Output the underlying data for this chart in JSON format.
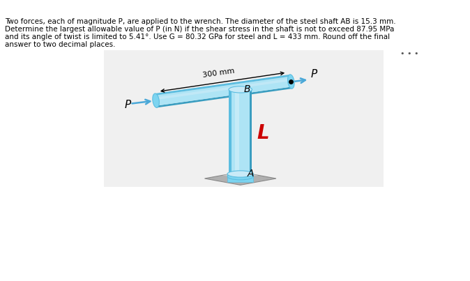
{
  "text_lines": [
    "Two forces, each of magnitude P, are applied to the wrench. The diameter of the steel shaft AB is 15.3 mm.",
    "Determine the largest allowable value of P (in N) if the shear stress in the shaft is not to exceed 87.95 MPa",
    "and its angle of twist is limited to 5.41°. Use G = 80.32 GPa for steel and L = 433 mm. Round off the final",
    "answer to two decimal places."
  ],
  "bg_color": "#f0f0f0",
  "text_bg_color": "#ffffff",
  "shaft_color_light": "#aee4f5",
  "shaft_color_mid": "#7dd4f0",
  "shaft_color_dark": "#5bbde0",
  "shaft_color_edge": "#3a9dc0",
  "base_color": "#c0c0c0",
  "base_color_dark": "#a0a0a0",
  "arrow_color": "#4aa8d8",
  "label_color_L": "#cc0000",
  "dots_color": "#555555"
}
